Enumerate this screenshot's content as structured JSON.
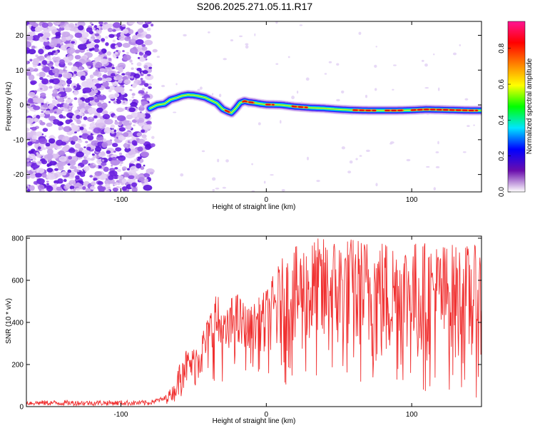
{
  "figure": {
    "title": "S206.2025.271.05.11.R17"
  },
  "chart_data": [
    {
      "type": "heatmap",
      "xlabel": "Height of straight line (km)",
      "ylabel": "Frequency (Hz)",
      "xlim": [
        -165,
        148
      ],
      "ylim": [
        -25,
        24
      ],
      "x_ticks": [
        -100,
        0,
        100
      ],
      "y_ticks": [
        20,
        10,
        0,
        -10,
        -20
      ],
      "colorbar": {
        "label": "Normalized spectral amplitude",
        "range": [
          0.0,
          0.95
        ],
        "ticks": [
          0.0,
          0.2,
          0.4,
          0.6,
          0.8
        ],
        "colormap": [
          "#ffffff",
          "#6a0dad",
          "#0000ff",
          "#00e5ff",
          "#00ff00",
          "#ffff00",
          "#ff8000",
          "#ff0000",
          "#ff1493"
        ]
      },
      "noise_region": {
        "x_range": [
          -165,
          -80
        ],
        "y_range": [
          -25,
          24
        ]
      },
      "ridge": {
        "x": [
          -80,
          -75,
          -70,
          -66,
          -62,
          -58,
          -54,
          -50,
          -46,
          -42,
          -38,
          -34,
          -30,
          -27,
          -24,
          -21,
          -18,
          -15,
          -12,
          -8,
          -4,
          0,
          10,
          20,
          30,
          40,
          50,
          60,
          70,
          80,
          90,
          100,
          110,
          120,
          130,
          140,
          148
        ],
        "y": [
          -1.0,
          0.0,
          0.3,
          1.5,
          2.0,
          2.6,
          2.9,
          2.8,
          2.5,
          2.1,
          1.3,
          0.5,
          -1.2,
          -1.8,
          -2.3,
          -1.0,
          0.6,
          1.1,
          0.8,
          0.6,
          0.3,
          0.1,
          0.0,
          -0.5,
          -0.8,
          -1.0,
          -1.3,
          -1.5,
          -1.6,
          -1.6,
          -1.6,
          -1.5,
          -1.3,
          -1.4,
          -1.5,
          -1.6,
          -1.6
        ]
      },
      "hot_segments_x": [
        [
          -28,
          -24
        ],
        [
          -16,
          -8
        ],
        [
          0,
          5
        ],
        [
          18,
          28
        ],
        [
          60,
          75
        ],
        [
          82,
          95
        ],
        [
          100,
          145
        ]
      ]
    },
    {
      "type": "area",
      "xlabel": "Height of straight line (km)",
      "ylabel": "SNR (10 * v/v)",
      "xlim": [
        -165,
        148
      ],
      "ylim": [
        0,
        810
      ],
      "x_ticks": [
        -100,
        0,
        100
      ],
      "y_ticks": [
        0,
        200,
        400,
        600,
        800
      ],
      "series": [
        {
          "color": "#f03030",
          "envelope": {
            "x": [
              -165,
              -80,
              -70,
              -62,
              -58,
              -52,
              -45,
              -40,
              -35,
              -28,
              -22,
              -12,
              -5,
              0,
              10,
              20,
              30,
              50,
              80,
              100,
              120,
              140,
              148
            ],
            "y_upper": [
              30,
              30,
              50,
              120,
              290,
              260,
              350,
              430,
              560,
              440,
              560,
              470,
              520,
              560,
              700,
              760,
              800,
              810,
              800,
              790,
              780,
              770,
              760
            ],
            "y_lower": [
              5,
              5,
              10,
              20,
              40,
              60,
              80,
              90,
              120,
              110,
              150,
              150,
              160,
              120,
              90,
              60,
              40,
              30,
              30,
              30,
              30,
              30,
              30
            ]
          }
        }
      ]
    }
  ]
}
